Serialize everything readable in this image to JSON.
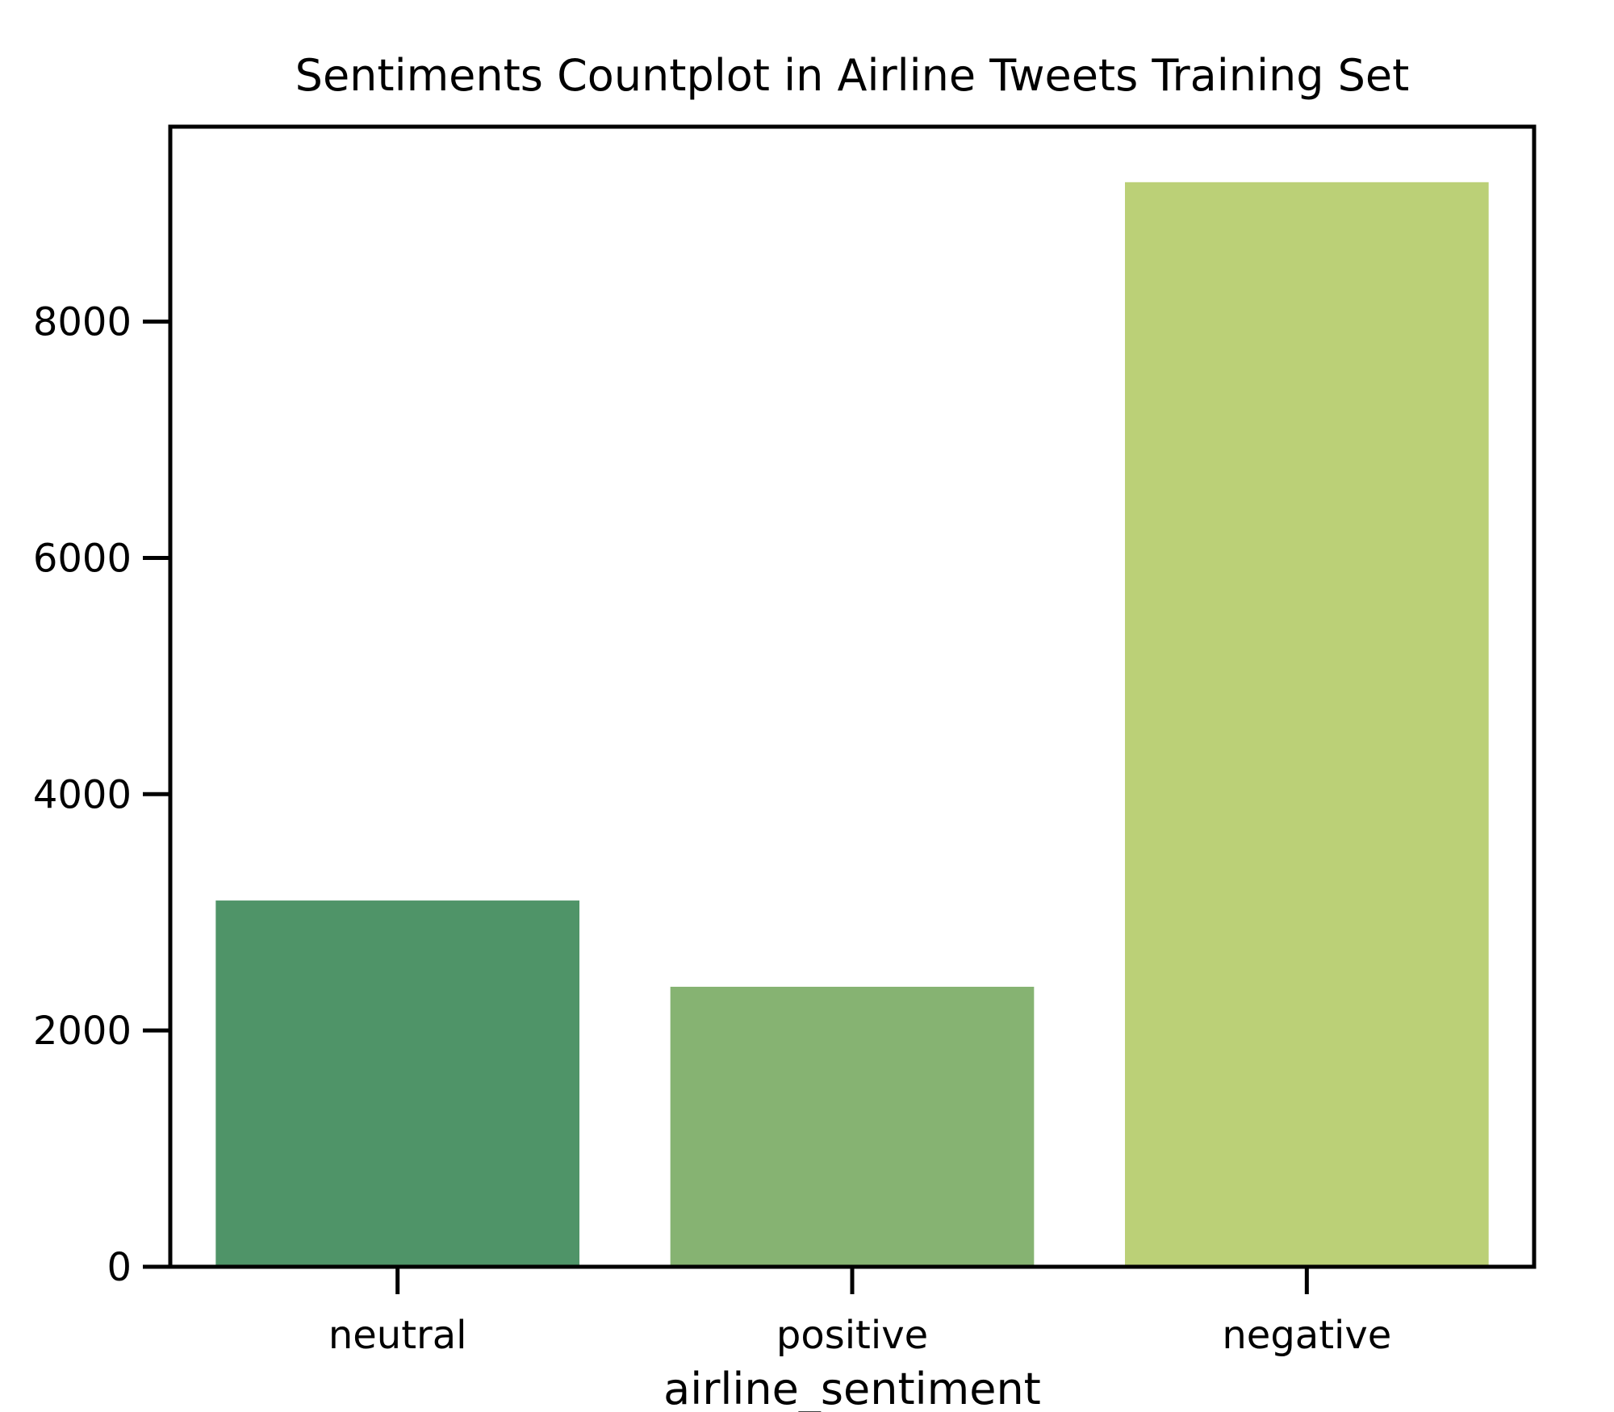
{
  "chart_data": {
    "type": "bar",
    "title": "Sentiments Countplot in Airline Tweets Training Set",
    "xlabel": "airline_sentiment",
    "ylabel": "",
    "categories": [
      "neutral",
      "positive",
      "negative"
    ],
    "values": [
      3100,
      2370,
      9180
    ],
    "colors": [
      "#4f9468",
      "#86b372",
      "#bbd077"
    ],
    "ylim": [
      0,
      9650
    ],
    "yticks": [
      0,
      2000,
      4000,
      6000,
      8000
    ],
    "grid": false
  }
}
